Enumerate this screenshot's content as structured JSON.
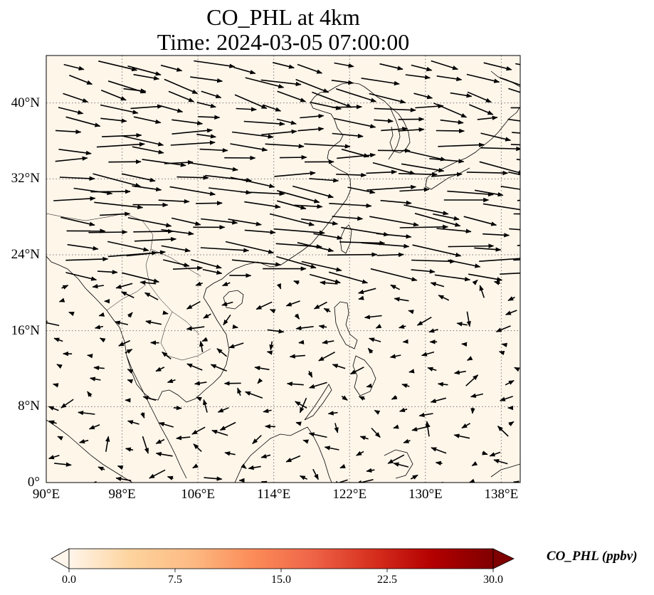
{
  "title": {
    "line1": "CO_PHL at 4km",
    "line2": "Time: 2024-03-05 07:00:00"
  },
  "map": {
    "extent": {
      "lon_min": 90,
      "lon_max": 140,
      "lat_min": 0,
      "lat_max": 45
    },
    "gridlines": true,
    "lat_ticks": [
      {
        "value": 0,
        "label": "0°"
      },
      {
        "value": 8,
        "label": "8°N"
      },
      {
        "value": 16,
        "label": "16°N"
      },
      {
        "value": 24,
        "label": "24°N"
      },
      {
        "value": 32,
        "label": "32°N"
      },
      {
        "value": 40,
        "label": "40°N"
      }
    ],
    "lon_ticks": [
      {
        "value": 90,
        "label": "90°E"
      },
      {
        "value": 98,
        "label": "98°E"
      },
      {
        "value": 106,
        "label": "106°E"
      },
      {
        "value": 114,
        "label": "114°E"
      },
      {
        "value": 122,
        "label": "122°E"
      },
      {
        "value": 130,
        "label": "130°E"
      },
      {
        "value": 138,
        "label": "138°E"
      }
    ],
    "background_color": "#fff6ea",
    "coastline_color": "#000000",
    "wind_vector_color": "#000000"
  },
  "colorbar": {
    "label": "CO_PHL (ppbv)",
    "min": 0.0,
    "max": 30.0,
    "ticks": [
      "0.0",
      "7.5",
      "15.0",
      "22.5",
      "30.0"
    ],
    "colors": [
      "#fff5eb",
      "#fdd49e",
      "#fdbb84",
      "#fc8d59",
      "#ef6548",
      "#d7301f",
      "#b30000",
      "#7f0000"
    ],
    "extend": "both"
  }
}
